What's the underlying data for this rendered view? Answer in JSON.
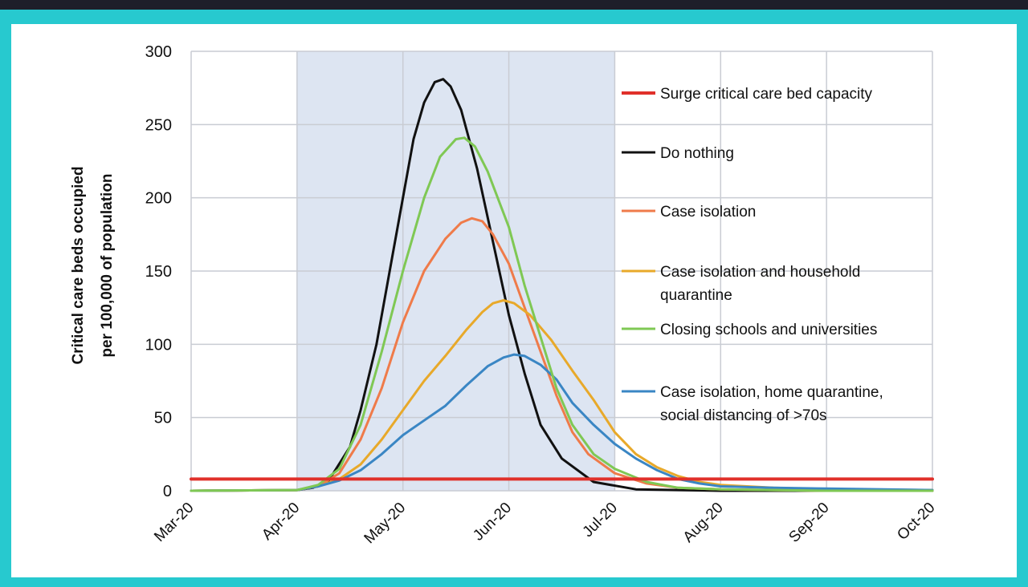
{
  "chart_data": {
    "type": "line",
    "ylabel": [
      "Critical care beds occupied",
      "per 100,000 of population"
    ],
    "x_ticks": [
      "Mar-20",
      "Apr-20",
      "May-20",
      "Jun-20",
      "Jul-20",
      "Aug-20",
      "Sep-20",
      "Oct-20"
    ],
    "ylim": [
      0,
      300
    ],
    "y_ticks": [
      0,
      50,
      100,
      150,
      200,
      250,
      300
    ],
    "grid": true,
    "legend_position": "right",
    "shaded_region": {
      "x_start": "Apr-20",
      "x_end": "Jul-20",
      "color": "#dde5f2"
    },
    "series": [
      {
        "name": "Surge critical care bed capacity",
        "color": "#e0302a",
        "points": [
          [
            0,
            8
          ],
          [
            7,
            8
          ]
        ]
      },
      {
        "name": "Do nothing",
        "color": "#111111",
        "points": [
          [
            0,
            0
          ],
          [
            1,
            0.5
          ],
          [
            1.15,
            2
          ],
          [
            1.3,
            7
          ],
          [
            1.5,
            30
          ],
          [
            1.6,
            55
          ],
          [
            1.75,
            100
          ],
          [
            1.9,
            160
          ],
          [
            2.0,
            200
          ],
          [
            2.1,
            240
          ],
          [
            2.2,
            265
          ],
          [
            2.3,
            279
          ],
          [
            2.38,
            281
          ],
          [
            2.45,
            276
          ],
          [
            2.55,
            260
          ],
          [
            2.7,
            220
          ],
          [
            2.85,
            170
          ],
          [
            3.0,
            120
          ],
          [
            3.15,
            80
          ],
          [
            3.3,
            45
          ],
          [
            3.5,
            22
          ],
          [
            3.8,
            6
          ],
          [
            4.2,
            1
          ],
          [
            5,
            0
          ],
          [
            7,
            0
          ]
        ]
      },
      {
        "name": "Case isolation",
        "color": "#ef7b4a",
        "points": [
          [
            0,
            0
          ],
          [
            1,
            0.5
          ],
          [
            1.2,
            3
          ],
          [
            1.4,
            12
          ],
          [
            1.6,
            35
          ],
          [
            1.8,
            70
          ],
          [
            2.0,
            115
          ],
          [
            2.2,
            150
          ],
          [
            2.4,
            172
          ],
          [
            2.55,
            183
          ],
          [
            2.65,
            186
          ],
          [
            2.75,
            184
          ],
          [
            2.85,
            175
          ],
          [
            3.0,
            155
          ],
          [
            3.15,
            125
          ],
          [
            3.3,
            95
          ],
          [
            3.45,
            65
          ],
          [
            3.6,
            40
          ],
          [
            3.75,
            25
          ],
          [
            4.0,
            12
          ],
          [
            4.3,
            5
          ],
          [
            4.6,
            2
          ],
          [
            5,
            1
          ],
          [
            6,
            0
          ],
          [
            7,
            0
          ]
        ]
      },
      {
        "name": "Case isolation and household quarantine",
        "color": "#e8a92a",
        "points": [
          [
            0,
            0
          ],
          [
            1,
            0.5
          ],
          [
            1.2,
            3
          ],
          [
            1.4,
            8
          ],
          [
            1.6,
            18
          ],
          [
            1.8,
            35
          ],
          [
            2.0,
            55
          ],
          [
            2.2,
            75
          ],
          [
            2.4,
            92
          ],
          [
            2.6,
            110
          ],
          [
            2.75,
            122
          ],
          [
            2.85,
            128
          ],
          [
            2.95,
            130
          ],
          [
            3.05,
            128
          ],
          [
            3.2,
            120
          ],
          [
            3.4,
            103
          ],
          [
            3.6,
            82
          ],
          [
            3.8,
            62
          ],
          [
            4.0,
            40
          ],
          [
            4.2,
            25
          ],
          [
            4.4,
            16
          ],
          [
            4.6,
            10
          ],
          [
            4.8,
            6
          ],
          [
            5.0,
            4
          ],
          [
            5.5,
            2
          ],
          [
            6,
            1
          ],
          [
            7,
            0.5
          ]
        ]
      },
      {
        "name": "Closing schools and universities",
        "color": "#7fc854",
        "points": [
          [
            0,
            0
          ],
          [
            1,
            0.5
          ],
          [
            1.2,
            4
          ],
          [
            1.4,
            15
          ],
          [
            1.6,
            45
          ],
          [
            1.8,
            95
          ],
          [
            2.0,
            150
          ],
          [
            2.2,
            200
          ],
          [
            2.35,
            228
          ],
          [
            2.5,
            240
          ],
          [
            2.58,
            241
          ],
          [
            2.68,
            235
          ],
          [
            2.8,
            218
          ],
          [
            3.0,
            180
          ],
          [
            3.15,
            140
          ],
          [
            3.3,
            105
          ],
          [
            3.45,
            70
          ],
          [
            3.6,
            45
          ],
          [
            3.8,
            25
          ],
          [
            4.0,
            15
          ],
          [
            4.3,
            6
          ],
          [
            4.6,
            2
          ],
          [
            5,
            1
          ],
          [
            6,
            0
          ],
          [
            7,
            0
          ]
        ]
      },
      {
        "name": "Case isolation, home quarantine, social distancing of >70s",
        "color": "#3a86c4",
        "points": [
          [
            0,
            0
          ],
          [
            1,
            0.5
          ],
          [
            1.2,
            3
          ],
          [
            1.4,
            7
          ],
          [
            1.6,
            14
          ],
          [
            1.8,
            25
          ],
          [
            2.0,
            38
          ],
          [
            2.2,
            48
          ],
          [
            2.4,
            58
          ],
          [
            2.6,
            72
          ],
          [
            2.8,
            85
          ],
          [
            2.95,
            91
          ],
          [
            3.05,
            93
          ],
          [
            3.15,
            92
          ],
          [
            3.3,
            86
          ],
          [
            3.45,
            76
          ],
          [
            3.6,
            60
          ],
          [
            3.8,
            45
          ],
          [
            4.0,
            32
          ],
          [
            4.2,
            22
          ],
          [
            4.4,
            14
          ],
          [
            4.6,
            8
          ],
          [
            4.8,
            5
          ],
          [
            5.0,
            3
          ],
          [
            5.5,
            2
          ],
          [
            6,
            1.5
          ],
          [
            7,
            0.5
          ]
        ]
      }
    ],
    "legend_lines": [
      [
        "Surge critical care bed capacity"
      ],
      [
        "Do nothing"
      ],
      [
        "Case isolation"
      ],
      [
        "Case isolation and household",
        "quarantine"
      ],
      [
        "Closing schools and universities"
      ],
      [
        "Case isolation, home quarantine,",
        "social distancing of >70s"
      ]
    ]
  }
}
